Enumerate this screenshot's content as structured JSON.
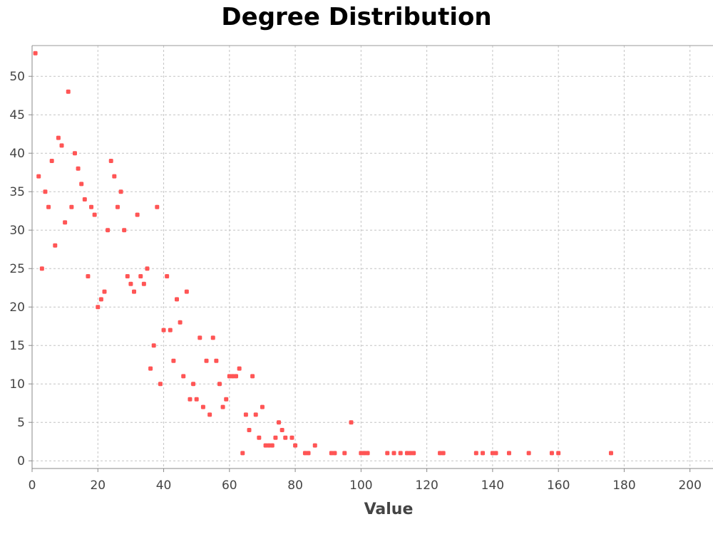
{
  "chart_data": {
    "type": "scatter",
    "title": "Degree Distribution",
    "xlabel": "Value",
    "ylabel": "",
    "xlim": [
      0,
      207
    ],
    "ylim": [
      -1,
      54
    ],
    "xticks": [
      0,
      20,
      40,
      60,
      80,
      100,
      120,
      140,
      160,
      180,
      200
    ],
    "yticks": [
      0,
      5,
      10,
      15,
      20,
      25,
      30,
      35,
      40,
      45,
      50
    ],
    "grid": true,
    "legend": "none",
    "point_color": "#ff5555",
    "series": [
      {
        "points": [
          [
            1,
            53
          ],
          [
            2,
            37
          ],
          [
            3,
            25
          ],
          [
            4,
            35
          ],
          [
            5,
            33
          ],
          [
            6,
            39
          ],
          [
            7,
            28
          ],
          [
            8,
            42
          ],
          [
            9,
            41
          ],
          [
            10,
            31
          ],
          [
            11,
            48
          ],
          [
            12,
            33
          ],
          [
            13,
            40
          ],
          [
            14,
            38
          ],
          [
            15,
            36
          ],
          [
            16,
            34
          ],
          [
            17,
            24
          ],
          [
            18,
            33
          ],
          [
            19,
            32
          ],
          [
            20,
            20
          ],
          [
            21,
            21
          ],
          [
            22,
            22
          ],
          [
            23,
            30
          ],
          [
            24,
            39
          ],
          [
            25,
            37
          ],
          [
            26,
            33
          ],
          [
            27,
            35
          ],
          [
            28,
            30
          ],
          [
            29,
            24
          ],
          [
            30,
            23
          ],
          [
            31,
            22
          ],
          [
            32,
            32
          ],
          [
            33,
            24
          ],
          [
            34,
            23
          ],
          [
            35,
            25
          ],
          [
            36,
            12
          ],
          [
            37,
            15
          ],
          [
            38,
            33
          ],
          [
            39,
            10
          ],
          [
            40,
            17
          ],
          [
            41,
            24
          ],
          [
            42,
            17
          ],
          [
            43,
            13
          ],
          [
            44,
            21
          ],
          [
            45,
            18
          ],
          [
            46,
            11
          ],
          [
            47,
            22
          ],
          [
            48,
            8
          ],
          [
            49,
            10
          ],
          [
            50,
            8
          ],
          [
            51,
            16
          ],
          [
            52,
            7
          ],
          [
            53,
            13
          ],
          [
            54,
            6
          ],
          [
            55,
            16
          ],
          [
            56,
            13
          ],
          [
            57,
            10
          ],
          [
            58,
            7
          ],
          [
            59,
            8
          ],
          [
            60,
            11
          ],
          [
            61,
            11
          ],
          [
            62,
            11
          ],
          [
            63,
            12
          ],
          [
            64,
            1
          ],
          [
            65,
            6
          ],
          [
            66,
            4
          ],
          [
            67,
            11
          ],
          [
            68,
            6
          ],
          [
            69,
            3
          ],
          [
            70,
            7
          ],
          [
            71,
            2
          ],
          [
            72,
            2
          ],
          [
            73,
            2
          ],
          [
            74,
            3
          ],
          [
            75,
            5
          ],
          [
            76,
            4
          ],
          [
            77,
            3
          ],
          [
            79,
            3
          ],
          [
            80,
            2
          ],
          [
            83,
            1
          ],
          [
            84,
            1
          ],
          [
            86,
            2
          ],
          [
            91,
            1
          ],
          [
            92,
            1
          ],
          [
            95,
            1
          ],
          [
            97,
            5
          ],
          [
            100,
            1
          ],
          [
            101,
            1
          ],
          [
            102,
            1
          ],
          [
            108,
            1
          ],
          [
            110,
            1
          ],
          [
            112,
            1
          ],
          [
            114,
            1
          ],
          [
            115,
            1
          ],
          [
            116,
            1
          ],
          [
            124,
            1
          ],
          [
            125,
            1
          ],
          [
            135,
            1
          ],
          [
            137,
            1
          ],
          [
            140,
            1
          ],
          [
            141,
            1
          ],
          [
            145,
            1
          ],
          [
            151,
            1
          ],
          [
            158,
            1
          ],
          [
            160,
            1
          ],
          [
            176,
            1
          ]
        ]
      }
    ]
  }
}
